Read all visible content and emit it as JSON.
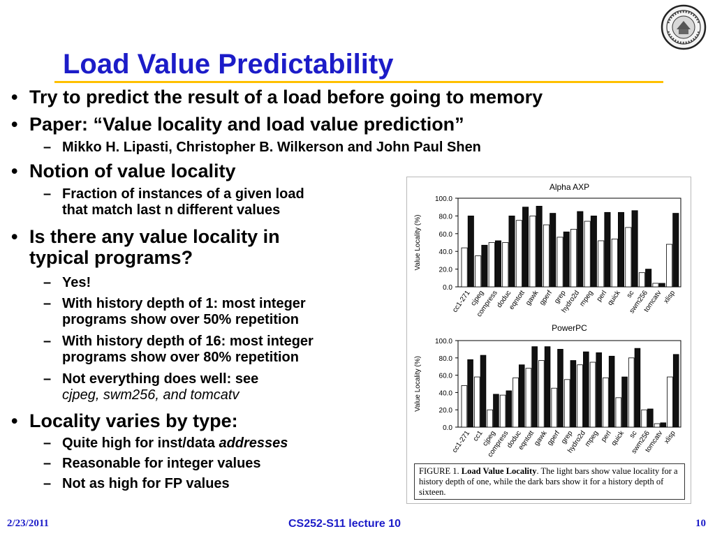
{
  "slide": {
    "title": "Load Value Predictability",
    "bullets": {
      "b1": "Try to predict the result of a load before going to memory",
      "b2": "Paper: “Value locality and load value prediction”",
      "b2_1": "Mikko H. Lipasti, Christopher B. Wilkerson and John Paul Shen",
      "b3": "Notion of value locality",
      "b3_1a": "Fraction of instances of a given load",
      "b3_1b": "that match last n different values",
      "b4a": "Is there any value locality in",
      "b4b": "typical programs?",
      "b4_1": "Yes!",
      "b4_2a": "With history depth of 1: most integer",
      "b4_2b": "programs show over 50% repetition",
      "b4_3a": "With history depth of 16: most integer",
      "b4_3b": "programs show over 80% repetition",
      "b4_4a": "Not everything does well: see",
      "b4_4b": "cjpeg, swm256, and tomcatv",
      "b5": "Locality varies by type:",
      "b5_1_prefix": "Quite high for inst/data ",
      "b5_1_em": "addresses",
      "b5_2": "Reasonable for integer values",
      "b5_3": "Not as high for FP values"
    },
    "bullet_marks": {
      "level1": "•",
      "level2": "–"
    },
    "caption": {
      "fig_no": "FIGURE 1.",
      "fig_title": "Load Value Locality",
      "text": ". The light bars show value locality for a history depth of one, while the dark bars show it for a history depth of sixteen."
    },
    "footer": {
      "date": "2/23/2011",
      "course": "CS252-S11 lecture 10",
      "page": "10"
    },
    "logo": {
      "icon": "university-seal-icon"
    },
    "colors": {
      "title": "#1c1cc8",
      "rule": "#ffc000",
      "light_bar": "#ffffff",
      "dark_bar": "#111111"
    }
  },
  "chart_data": [
    {
      "type": "bar",
      "title": "Alpha AXP",
      "ylabel": "Value Locality (%)",
      "ylim": [
        0,
        100
      ],
      "yticks": [
        "0.0",
        "20.0",
        "40.0",
        "60.0",
        "80.0",
        "100.0"
      ],
      "categories": [
        "cc1-271",
        "cjpeg",
        "compress",
        "doduc",
        "eqntott",
        "gawk",
        "gperf",
        "grep",
        "hydro2d",
        "mpeg",
        "perl",
        "quick",
        "sc",
        "swm256",
        "tomcatv",
        "xlisp"
      ],
      "series": [
        {
          "values": [
            44,
            35,
            50,
            50,
            75,
            80,
            70,
            56,
            65,
            74,
            52,
            54,
            67,
            16,
            4,
            48
          ]
        },
        {
          "values": [
            80,
            47,
            52,
            80,
            90,
            91,
            83,
            62,
            85,
            80,
            84,
            84,
            86,
            20,
            4,
            83
          ]
        }
      ]
    },
    {
      "type": "bar",
      "title": "PowerPC",
      "ylabel": "Value Locality (%)",
      "ylim": [
        0,
        100
      ],
      "yticks": [
        "0.0",
        "20.0",
        "40.0",
        "60.0",
        "80.0",
        "100.0"
      ],
      "categories": [
        "cc1-271",
        "cc1",
        "cjpeg",
        "compress",
        "doduc",
        "eqntott",
        "gawk",
        "gperf",
        "grep",
        "hydro2d",
        "mpeg",
        "perl",
        "quick",
        "sc",
        "swm256",
        "tomcatv",
        "xlisp"
      ],
      "series": [
        {
          "values": [
            48,
            58,
            20,
            37,
            57,
            68,
            77,
            45,
            55,
            72,
            75,
            57,
            34,
            80,
            20,
            4,
            58
          ]
        },
        {
          "values": [
            78,
            83,
            38,
            42,
            72,
            93,
            93,
            90,
            77,
            87,
            86,
            82,
            58,
            91,
            21,
            5,
            84
          ]
        }
      ]
    }
  ]
}
